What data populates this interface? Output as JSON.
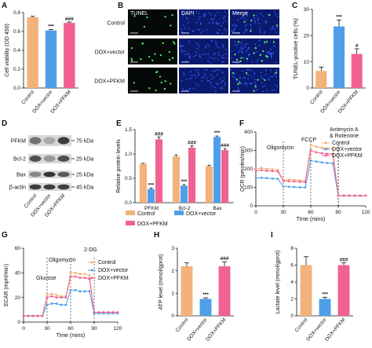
{
  "colors": {
    "control": "#f2b27a",
    "vector": "#4f9fe8",
    "pfkm": "#f06292",
    "cell_bg": "#0a1a6e",
    "blot_bg": "#d8d8d8",
    "band": "#222222"
  },
  "panels": {
    "A": "A",
    "B": "B",
    "C": "C",
    "D": "D",
    "E": "E",
    "F": "F",
    "G": "G",
    "H": "H",
    "I": "I"
  },
  "groups": [
    "Control",
    "DOX+vector",
    "DOX+PFKM"
  ],
  "micrograph": {
    "columns": [
      "TUNEL",
      "DAPI",
      "Merge"
    ],
    "rows": [
      "Control",
      "DOX+vector",
      "DOX+PFKM"
    ]
  },
  "western": {
    "proteins": [
      "PFKM",
      "Bcl-2",
      "Bax",
      "β-actin"
    ],
    "sizes": [
      "75 kDa",
      "25 kDa",
      "25 kDa",
      "45 kDa"
    ]
  },
  "chart_data": [
    {
      "panel": "A",
      "type": "bar",
      "categories": [
        "Control",
        "DOX+vector",
        "DOX+PFKM"
      ],
      "values": [
        0.75,
        0.61,
        0.69
      ],
      "errors": [
        0.01,
        0.01,
        0.01
      ],
      "significance": [
        "",
        "***",
        "###"
      ],
      "ylabel": "Cell viability (OD 450)",
      "ylim": [
        0,
        0.8
      ],
      "yticks": [
        "0.0",
        "0.2",
        "0.4",
        "0.6",
        "0.8"
      ]
    },
    {
      "panel": "C",
      "type": "bar",
      "categories": [
        "Control",
        "DOX+vector",
        "DOX+PFKM"
      ],
      "values": [
        6.5,
        23.5,
        13
      ],
      "errors": [
        1.5,
        2.5,
        2
      ],
      "significance": [
        "",
        "***",
        "#"
      ],
      "ylabel": "TUNEL-positive cells (%)",
      "ylim": [
        0,
        30
      ],
      "yticks": [
        "0",
        "10",
        "20",
        "30"
      ]
    },
    {
      "panel": "E",
      "type": "bar",
      "categories": [
        "PFKM",
        "Bcl-2",
        "Bax"
      ],
      "series": [
        {
          "name": "Control",
          "values": [
            0.8,
            0.95,
            0.75
          ],
          "errors": [
            0.01,
            0.03,
            0.02
          ],
          "significance": [
            "",
            "",
            ""
          ]
        },
        {
          "name": "DOX+vector",
          "values": [
            0.28,
            0.35,
            1.35
          ],
          "errors": [
            0.02,
            0.02,
            0.02
          ],
          "significance": [
            "***",
            "***",
            "***"
          ]
        },
        {
          "name": "DOX+PFKM",
          "values": [
            1.3,
            1.13,
            1.08
          ],
          "errors": [
            0.05,
            0.04,
            0.03
          ],
          "significance": [
            "###",
            "###",
            "###"
          ]
        }
      ],
      "ylabel": "Relative protein levels",
      "ylim": [
        0,
        1.5
      ],
      "yticks": [
        "0.0",
        "0.5",
        "1.0",
        "1.5"
      ]
    },
    {
      "panel": "F",
      "type": "line",
      "x": [
        0,
        6,
        12,
        18,
        24,
        30,
        36,
        42,
        48,
        54,
        60,
        66,
        72,
        78,
        84,
        90,
        96,
        102,
        108,
        114,
        120
      ],
      "series": [
        {
          "name": "Control",
          "values": [
            200,
            205,
            200,
            198,
            195,
            140,
            142,
            140,
            138,
            136,
            330,
            320,
            315,
            312,
            310,
            55,
            55,
            55,
            55,
            55,
            55
          ]
        },
        {
          "name": "DOX+vector",
          "values": [
            150,
            152,
            150,
            148,
            146,
            105,
            103,
            102,
            100,
            100,
            245,
            240,
            235,
            232,
            230,
            55,
            55,
            55,
            55,
            55,
            55
          ]
        },
        {
          "name": "DOX+PFKM",
          "values": [
            190,
            193,
            190,
            188,
            186,
            135,
            133,
            132,
            130,
            128,
            300,
            290,
            285,
            282,
            280,
            55,
            55,
            55,
            55,
            55,
            55
          ]
        }
      ],
      "annotations": [
        {
          "label": "Oligomycin",
          "x": 30
        },
        {
          "label": "FCCP",
          "x": 60
        },
        {
          "label": "Antimycin A",
          "x": 90
        },
        {
          "label": "& Rotenone",
          "x": 90
        }
      ],
      "ylabel": "OCR (pmoles/min)",
      "xlabel": "Time (mins)",
      "ylim": [
        0,
        400
      ],
      "xlim": [
        0,
        120
      ],
      "yticks": [
        "0",
        "100",
        "200",
        "300",
        "400"
      ],
      "xticks": [
        "0",
        "30",
        "60",
        "90",
        "120"
      ]
    },
    {
      "panel": "G",
      "type": "line",
      "x": [
        0,
        6,
        12,
        18,
        24,
        30,
        36,
        42,
        48,
        54,
        60,
        66,
        72,
        78,
        84,
        90,
        96,
        102,
        108,
        114,
        120
      ],
      "series": [
        {
          "name": "Control",
          "values": [
            5,
            5,
            5,
            5,
            5,
            22,
            23,
            22,
            21,
            21,
            40,
            40,
            39,
            39,
            38,
            8,
            8,
            8,
            8,
            8,
            8
          ]
        },
        {
          "name": "DOX+vector",
          "values": [
            5,
            5,
            5,
            5,
            5,
            14,
            15,
            15,
            14,
            14,
            26,
            26,
            25,
            25,
            25,
            7,
            7,
            7,
            7,
            7,
            7
          ]
        },
        {
          "name": "DOX+PFKM",
          "values": [
            5,
            5,
            5,
            5,
            5,
            20,
            21,
            20,
            20,
            20,
            37,
            37,
            36,
            36,
            35,
            8,
            8,
            8,
            8,
            8,
            8
          ]
        }
      ],
      "annotations": [
        {
          "label": "Glucose",
          "x": 30
        },
        {
          "label": "Oligomycin",
          "x": 60
        },
        {
          "label": "2-DG",
          "x": 90
        }
      ],
      "ylabel": "ECAR (mpH/min)",
      "xlabel": "Time (mins)",
      "ylim": [
        0,
        60
      ],
      "xlim": [
        0,
        120
      ],
      "yticks": [
        "0",
        "20",
        "40",
        "60"
      ],
      "xticks": [
        "0",
        "30",
        "60",
        "90",
        "120"
      ]
    },
    {
      "panel": "H",
      "type": "bar",
      "categories": [
        "Control",
        "DOX+vector",
        "DOX+PFKM"
      ],
      "values": [
        2.2,
        0.75,
        2.2
      ],
      "errors": [
        0.15,
        0.05,
        0.2
      ],
      "significance": [
        "",
        "***",
        "###"
      ],
      "ylabel": "ATP level (mmol/gprot)",
      "ylim": [
        0,
        3
      ],
      "yticks": [
        "0",
        "1",
        "2",
        "3"
      ]
    },
    {
      "panel": "I",
      "type": "bar",
      "categories": [
        "Control",
        "DOX+vector",
        "DOX+PFKM"
      ],
      "values": [
        6,
        2,
        6
      ],
      "errors": [
        1,
        0.2,
        0.3
      ],
      "significance": [
        "",
        "***",
        "###"
      ],
      "ylabel": "Lactate level (mmol/gprot)",
      "ylim": [
        0,
        8
      ],
      "yticks": [
        "0",
        "2",
        "4",
        "6",
        "8"
      ]
    }
  ]
}
